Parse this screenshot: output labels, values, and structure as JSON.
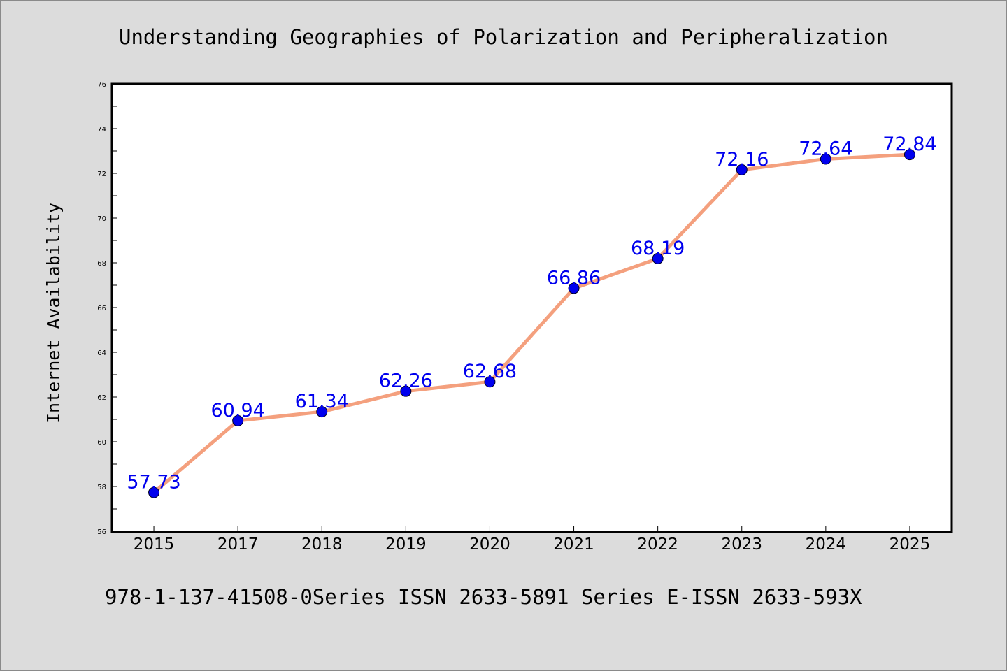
{
  "chart_data": {
    "type": "line",
    "title": "Understanding Geographies of Polarization and Peripheralization",
    "footer": "978-1-137-41508-0Series ISSN 2633-5891 Series E-ISSN 2633-593X",
    "xlabel": "",
    "ylabel": "Internet Availability",
    "categories": [
      "2015",
      "2017",
      "2018",
      "2019",
      "2020",
      "2021",
      "2022",
      "2023",
      "2024",
      "2025"
    ],
    "series": [
      {
        "values": [
          57.73,
          60.94,
          61.34,
          62.26,
          62.68,
          66.86,
          68.19,
          72.16,
          72.64,
          72.84
        ]
      }
    ],
    "data_labels": [
      "57.73",
      "60.94",
      "61.34",
      "62.26",
      "62.68",
      "66.86",
      "68.19",
      "72.16",
      "72.64",
      "72.84"
    ],
    "ylim": [
      56,
      76
    ],
    "yticks": [
      "56",
      "58",
      "60",
      "62",
      "64",
      "66",
      "68",
      "70",
      "72",
      "74",
      "76"
    ],
    "grid": false,
    "colors": {
      "background": "#dcdcdc",
      "plot_background": "#ffffff",
      "line": "#f4a07e",
      "marker": "#0000ee",
      "data_label": "#0000ee",
      "axis": "#000000"
    }
  }
}
